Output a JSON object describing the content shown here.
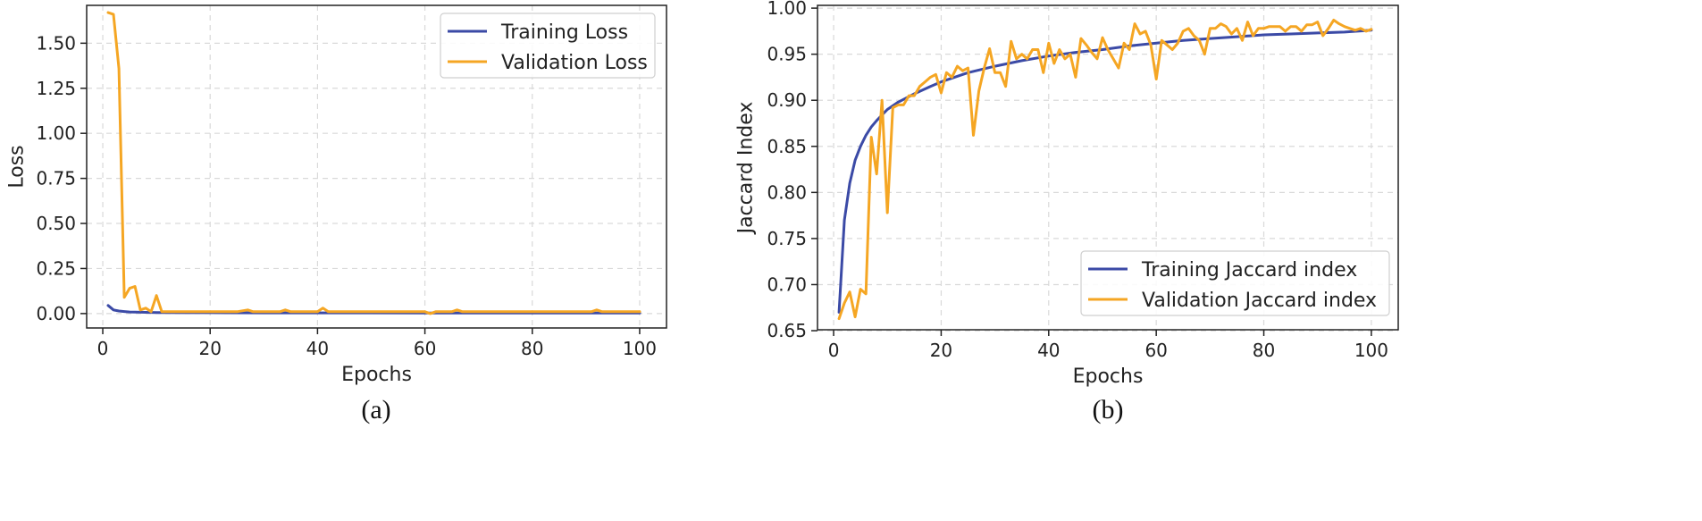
{
  "chart_data": [
    {
      "type": "line",
      "panel_label": "(a)",
      "xlabel": "Epochs",
      "ylabel": "Loss",
      "xlim": [
        -3,
        105
      ],
      "ylim": [
        -0.08,
        1.71
      ],
      "xticks": [
        0,
        20,
        40,
        60,
        80,
        100
      ],
      "yticks": [
        0.0,
        0.25,
        0.5,
        0.75,
        1.0,
        1.25,
        1.5
      ],
      "ytick_decimals": 2,
      "grid": true,
      "legend_position": "top-right",
      "series": [
        {
          "name": "Training Loss",
          "color": "#3b4aa6",
          "x": [
            1,
            2,
            3,
            4,
            5,
            6,
            8,
            10,
            15,
            20,
            30,
            40,
            50,
            60,
            70,
            80,
            90,
            100
          ],
          "values": [
            0.045,
            0.02,
            0.014,
            0.011,
            0.009,
            0.008,
            0.007,
            0.006,
            0.005,
            0.005,
            0.004,
            0.004,
            0.004,
            0.003,
            0.003,
            0.003,
            0.003,
            0.003
          ]
        },
        {
          "name": "Validation Loss",
          "color": "#f5a623",
          "x": [
            1,
            2,
            3,
            4,
            5,
            6,
            7,
            8,
            9,
            10,
            11,
            12,
            20,
            25,
            27,
            28,
            33,
            34,
            35,
            40,
            41,
            42,
            45,
            50,
            55,
            60,
            61,
            62,
            65,
            66,
            67,
            70,
            80,
            90,
            91,
            92,
            93,
            95,
            100
          ],
          "values": [
            1.67,
            1.66,
            1.36,
            0.09,
            0.14,
            0.15,
            0.02,
            0.03,
            0.01,
            0.1,
            0.01,
            0.01,
            0.01,
            0.01,
            0.02,
            0.01,
            0.01,
            0.02,
            0.01,
            0.01,
            0.03,
            0.01,
            0.01,
            0.01,
            0.01,
            0.01,
            0.0,
            0.01,
            0.01,
            0.02,
            0.01,
            0.01,
            0.01,
            0.01,
            0.01,
            0.02,
            0.01,
            0.01,
            0.01
          ]
        }
      ]
    },
    {
      "type": "line",
      "panel_label": "(b)",
      "xlabel": "Epochs",
      "ylabel": "Jaccard Index",
      "xlim": [
        -3,
        105
      ],
      "ylim": [
        0.651,
        1.003
      ],
      "xticks": [
        0,
        20,
        40,
        60,
        80,
        100
      ],
      "yticks": [
        0.65,
        0.7,
        0.75,
        0.8,
        0.85,
        0.9,
        0.95,
        1.0
      ],
      "ytick_decimals": 2,
      "grid": true,
      "legend_position": "bottom-right",
      "series": [
        {
          "name": "Training Jaccard index",
          "color": "#3b4aa6",
          "x": [
            1,
            2,
            3,
            4,
            5,
            6,
            7,
            8,
            10,
            12,
            15,
            18,
            20,
            25,
            30,
            35,
            40,
            45,
            50,
            55,
            60,
            65,
            70,
            75,
            80,
            85,
            90,
            95,
            100
          ],
          "values": [
            0.67,
            0.77,
            0.81,
            0.835,
            0.85,
            0.862,
            0.871,
            0.878,
            0.89,
            0.898,
            0.907,
            0.915,
            0.92,
            0.93,
            0.937,
            0.943,
            0.948,
            0.952,
            0.955,
            0.959,
            0.962,
            0.965,
            0.967,
            0.969,
            0.971,
            0.972,
            0.973,
            0.974,
            0.976
          ]
        },
        {
          "name": "Validation Jaccard index",
          "color": "#f5a623",
          "x": [
            1,
            2,
            3,
            4,
            5,
            6,
            7,
            8,
            9,
            10,
            11,
            12,
            13,
            14,
            15,
            16,
            17,
            18,
            19,
            20,
            21,
            22,
            23,
            24,
            25,
            26,
            27,
            28,
            29,
            30,
            31,
            32,
            33,
            34,
            35,
            36,
            37,
            38,
            39,
            40,
            41,
            42,
            43,
            44,
            45,
            46,
            47,
            48,
            49,
            50,
            51,
            52,
            53,
            54,
            55,
            56,
            57,
            58,
            59,
            60,
            61,
            62,
            63,
            64,
            65,
            66,
            67,
            68,
            69,
            70,
            71,
            72,
            73,
            74,
            75,
            76,
            77,
            78,
            79,
            80,
            81,
            82,
            83,
            84,
            85,
            86,
            87,
            88,
            89,
            90,
            91,
            92,
            93,
            94,
            95,
            96,
            97,
            98,
            99,
            100
          ],
          "values": [
            0.663,
            0.68,
            0.692,
            0.665,
            0.695,
            0.69,
            0.86,
            0.82,
            0.9,
            0.778,
            0.892,
            0.895,
            0.895,
            0.905,
            0.905,
            0.915,
            0.92,
            0.925,
            0.928,
            0.908,
            0.93,
            0.925,
            0.937,
            0.932,
            0.935,
            0.862,
            0.91,
            0.935,
            0.956,
            0.93,
            0.93,
            0.915,
            0.964,
            0.945,
            0.95,
            0.945,
            0.955,
            0.955,
            0.93,
            0.962,
            0.94,
            0.955,
            0.945,
            0.95,
            0.925,
            0.967,
            0.96,
            0.952,
            0.945,
            0.968,
            0.955,
            0.945,
            0.935,
            0.962,
            0.955,
            0.983,
            0.972,
            0.975,
            0.96,
            0.923,
            0.965,
            0.96,
            0.955,
            0.962,
            0.975,
            0.978,
            0.97,
            0.965,
            0.95,
            0.978,
            0.978,
            0.983,
            0.98,
            0.972,
            0.978,
            0.965,
            0.985,
            0.97,
            0.978,
            0.978,
            0.98,
            0.98,
            0.98,
            0.975,
            0.98,
            0.98,
            0.975,
            0.982,
            0.982,
            0.985,
            0.97,
            0.978,
            0.987,
            0.983,
            0.98,
            0.978,
            0.976,
            0.978,
            0.975,
            0.977
          ]
        }
      ]
    }
  ]
}
